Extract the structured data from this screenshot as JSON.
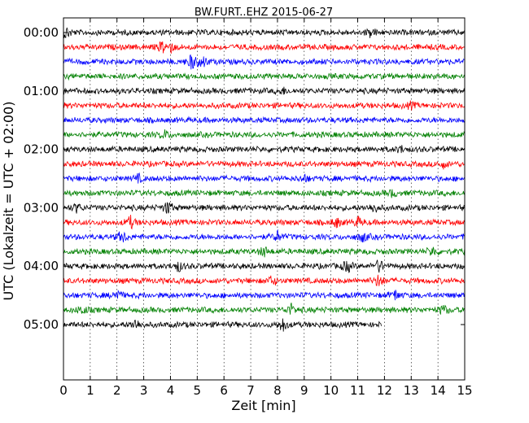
{
  "chart_data": {
    "type": "line",
    "title": "BW.FURT..EHZ 2015-06-27",
    "xlabel": "Zeit  [min]",
    "ylabel": "UTC (Lokalzeit = UTC + 02:00)",
    "xlim": [
      0,
      15
    ],
    "x_ticks": [
      "0",
      "1",
      "2",
      "3",
      "4",
      "5",
      "6",
      "7",
      "8",
      "9",
      "10",
      "11",
      "12",
      "13",
      "14",
      "15"
    ],
    "y_tick_labels": [
      "00:00",
      "01:00",
      "02:00",
      "03:00",
      "04:00",
      "05:00"
    ],
    "trace_interval_minutes": 15,
    "grid": "vertical dotted at each minute",
    "color_cycle": [
      "#000000",
      "#ff0000",
      "#0000ff",
      "#008000"
    ],
    "traces": [
      {
        "start": "00:00",
        "end_minute": 15,
        "color": "#000000",
        "events": [
          {
            "minute": 0.1,
            "amp": 1.0
          },
          {
            "minute": 11.5,
            "amp": 0.8
          }
        ]
      },
      {
        "start": "00:15",
        "end_minute": 15,
        "color": "#ff0000",
        "events": [
          {
            "minute": 3.7,
            "amp": 1.1
          },
          {
            "minute": 4.0,
            "amp": 0.8
          }
        ]
      },
      {
        "start": "00:30",
        "end_minute": 15,
        "color": "#0000ff",
        "events": [
          {
            "minute": 4.8,
            "amp": 1.4
          },
          {
            "minute": 5.2,
            "amp": 1.2
          }
        ]
      },
      {
        "start": "00:45",
        "end_minute": 15,
        "color": "#008000",
        "events": []
      },
      {
        "start": "01:00",
        "end_minute": 15,
        "color": "#000000",
        "events": [
          {
            "minute": 8.2,
            "amp": 0.5
          }
        ]
      },
      {
        "start": "01:15",
        "end_minute": 15,
        "color": "#ff0000",
        "events": [
          {
            "minute": 13.0,
            "amp": 0.5
          }
        ]
      },
      {
        "start": "01:30",
        "end_minute": 15,
        "color": "#0000ff",
        "events": []
      },
      {
        "start": "01:45",
        "end_minute": 15,
        "color": "#008000",
        "events": [
          {
            "minute": 3.8,
            "amp": 0.7
          }
        ]
      },
      {
        "start": "02:00",
        "end_minute": 15,
        "color": "#000000",
        "events": [
          {
            "minute": 12.6,
            "amp": 0.6
          }
        ]
      },
      {
        "start": "02:15",
        "end_minute": 15,
        "color": "#ff0000",
        "events": [
          {
            "minute": 14.2,
            "amp": 0.6
          }
        ]
      },
      {
        "start": "02:30",
        "end_minute": 15,
        "color": "#0000ff",
        "events": [
          {
            "minute": 2.8,
            "amp": 0.6
          },
          {
            "minute": 9.0,
            "amp": 0.6
          }
        ]
      },
      {
        "start": "02:45",
        "end_minute": 15,
        "color": "#008000",
        "events": [
          {
            "minute": 12.3,
            "amp": 0.6
          }
        ]
      },
      {
        "start": "03:00",
        "end_minute": 15,
        "color": "#000000",
        "events": [
          {
            "minute": 0.5,
            "amp": 0.8
          },
          {
            "minute": 3.9,
            "amp": 1.2
          },
          {
            "minute": 11.6,
            "amp": 0.9
          }
        ]
      },
      {
        "start": "03:15",
        "end_minute": 15,
        "color": "#ff0000",
        "events": [
          {
            "minute": 2.5,
            "amp": 1.1
          },
          {
            "minute": 10.2,
            "amp": 0.9
          },
          {
            "minute": 11.0,
            "amp": 0.8
          }
        ]
      },
      {
        "start": "03:30",
        "end_minute": 15,
        "color": "#0000ff",
        "events": [
          {
            "minute": 2.2,
            "amp": 1.1
          },
          {
            "minute": 8.0,
            "amp": 0.9
          },
          {
            "minute": 11.2,
            "amp": 0.9
          }
        ]
      },
      {
        "start": "03:45",
        "end_minute": 15,
        "color": "#008000",
        "events": [
          {
            "minute": 7.5,
            "amp": 0.9
          },
          {
            "minute": 13.8,
            "amp": 0.9
          }
        ]
      },
      {
        "start": "04:00",
        "end_minute": 15,
        "color": "#000000",
        "events": [
          {
            "minute": 4.3,
            "amp": 0.9
          },
          {
            "minute": 10.6,
            "amp": 1.1
          },
          {
            "minute": 11.8,
            "amp": 1.1
          }
        ]
      },
      {
        "start": "04:15",
        "end_minute": 15,
        "color": "#ff0000",
        "events": [
          {
            "minute": 7.8,
            "amp": 0.9
          },
          {
            "minute": 11.8,
            "amp": 1.2
          }
        ]
      },
      {
        "start": "04:30",
        "end_minute": 15,
        "color": "#0000ff",
        "events": [
          {
            "minute": 2.0,
            "amp": 1.0
          },
          {
            "minute": 12.4,
            "amp": 0.9
          }
        ]
      },
      {
        "start": "04:45",
        "end_minute": 15,
        "color": "#008000",
        "events": [
          {
            "minute": 0.7,
            "amp": 0.8
          },
          {
            "minute": 8.5,
            "amp": 1.0
          },
          {
            "minute": 14.2,
            "amp": 0.9
          }
        ]
      },
      {
        "start": "05:00",
        "end_minute": 11.9,
        "color": "#000000",
        "events": [
          {
            "minute": 2.7,
            "amp": 1.0
          },
          {
            "minute": 8.2,
            "amp": 1.2
          }
        ]
      }
    ]
  }
}
